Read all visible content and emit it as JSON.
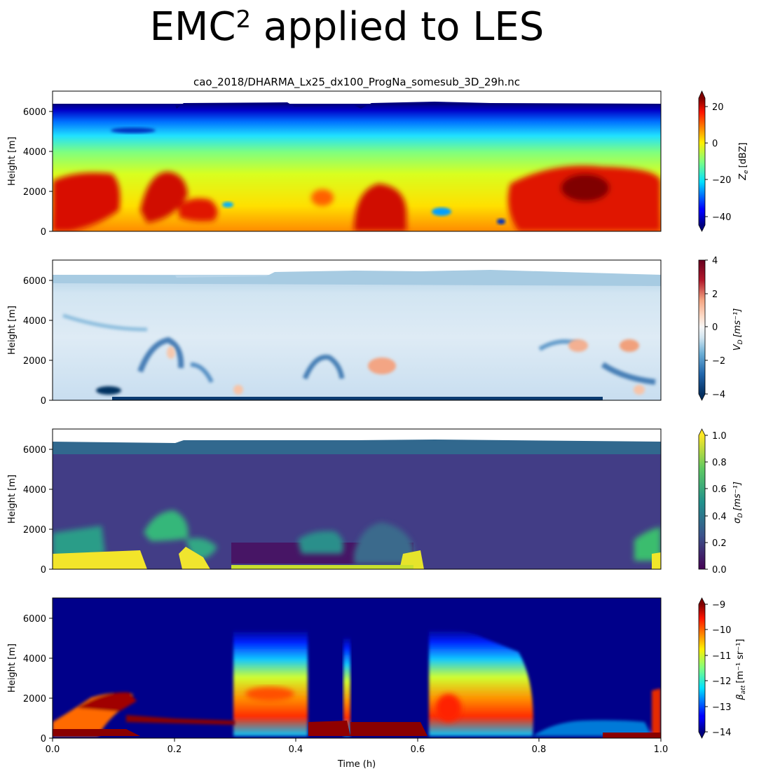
{
  "figure": {
    "title_base": "EMC",
    "title_superscript": "2",
    "title_rest": " applied to LES",
    "subtitle": "cao_2018/DHARMA_Lx25_dx100_ProgNa_somesub_3D_29h.nc",
    "xlabel": "Time (h)"
  },
  "chart_data": [
    {
      "type": "heatmap",
      "ylabel": "Height [m]",
      "xlim": [
        0.0,
        1.0
      ],
      "ylim": [
        0,
        7000
      ],
      "yticks": [
        0,
        2000,
        4000,
        6000
      ],
      "xticks": [
        0.0,
        0.2,
        0.4,
        0.6,
        0.8,
        1.0
      ],
      "show_xticklabels": false,
      "colormap": "jet",
      "colorbar": {
        "label_main": "Z",
        "label_sub": "e",
        "label_unit": "[dBZ]",
        "ticks": [
          20,
          0,
          -20,
          -40
        ],
        "range": [
          -48,
          27
        ],
        "extend": "both"
      }
    },
    {
      "type": "heatmap",
      "ylabel": "Height [m]",
      "xlim": [
        0.0,
        1.0
      ],
      "ylim": [
        0,
        7000
      ],
      "yticks": [
        0,
        2000,
        4000,
        6000
      ],
      "xticks": [
        0.0,
        0.2,
        0.4,
        0.6,
        0.8,
        1.0
      ],
      "show_xticklabels": false,
      "colormap": "RdBu_r",
      "colorbar": {
        "label_main": "V",
        "label_sub": "D",
        "label_unit": "[ms⁻¹]",
        "ticks": [
          4,
          2,
          0,
          -2,
          -4
        ],
        "range": [
          -4,
          4
        ],
        "extend": "min"
      }
    },
    {
      "type": "heatmap",
      "ylabel": "Height [m]",
      "xlim": [
        0.0,
        1.0
      ],
      "ylim": [
        0,
        7000
      ],
      "yticks": [
        0,
        2000,
        4000,
        6000
      ],
      "xticks": [
        0.0,
        0.2,
        0.4,
        0.6,
        0.8,
        1.0
      ],
      "show_xticklabels": false,
      "colormap": "viridis",
      "colorbar": {
        "label_main": "σ",
        "label_sub": "D",
        "label_unit": "[ms⁻¹]",
        "ticks": [
          1.0,
          0.8,
          0.6,
          0.4,
          0.2,
          0.0
        ],
        "range": [
          0,
          1
        ],
        "extend": "max"
      }
    },
    {
      "type": "heatmap",
      "ylabel": "Height [m]",
      "xlim": [
        0.0,
        1.0
      ],
      "ylim": [
        0,
        7000
      ],
      "yticks": [
        0,
        2000,
        4000,
        6000
      ],
      "xticks": [
        0.0,
        0.2,
        0.4,
        0.6,
        0.8,
        1.0
      ],
      "show_xticklabels": true,
      "colormap": "jet",
      "colorbar": {
        "label_main": "β",
        "label_sub": "att",
        "label_unit": "[m⁻¹ sr⁻¹]",
        "ticks": [
          -9,
          -10,
          -11,
          -12,
          -13,
          -14
        ],
        "range": [
          -14,
          -9
        ],
        "extend": "both"
      }
    }
  ]
}
